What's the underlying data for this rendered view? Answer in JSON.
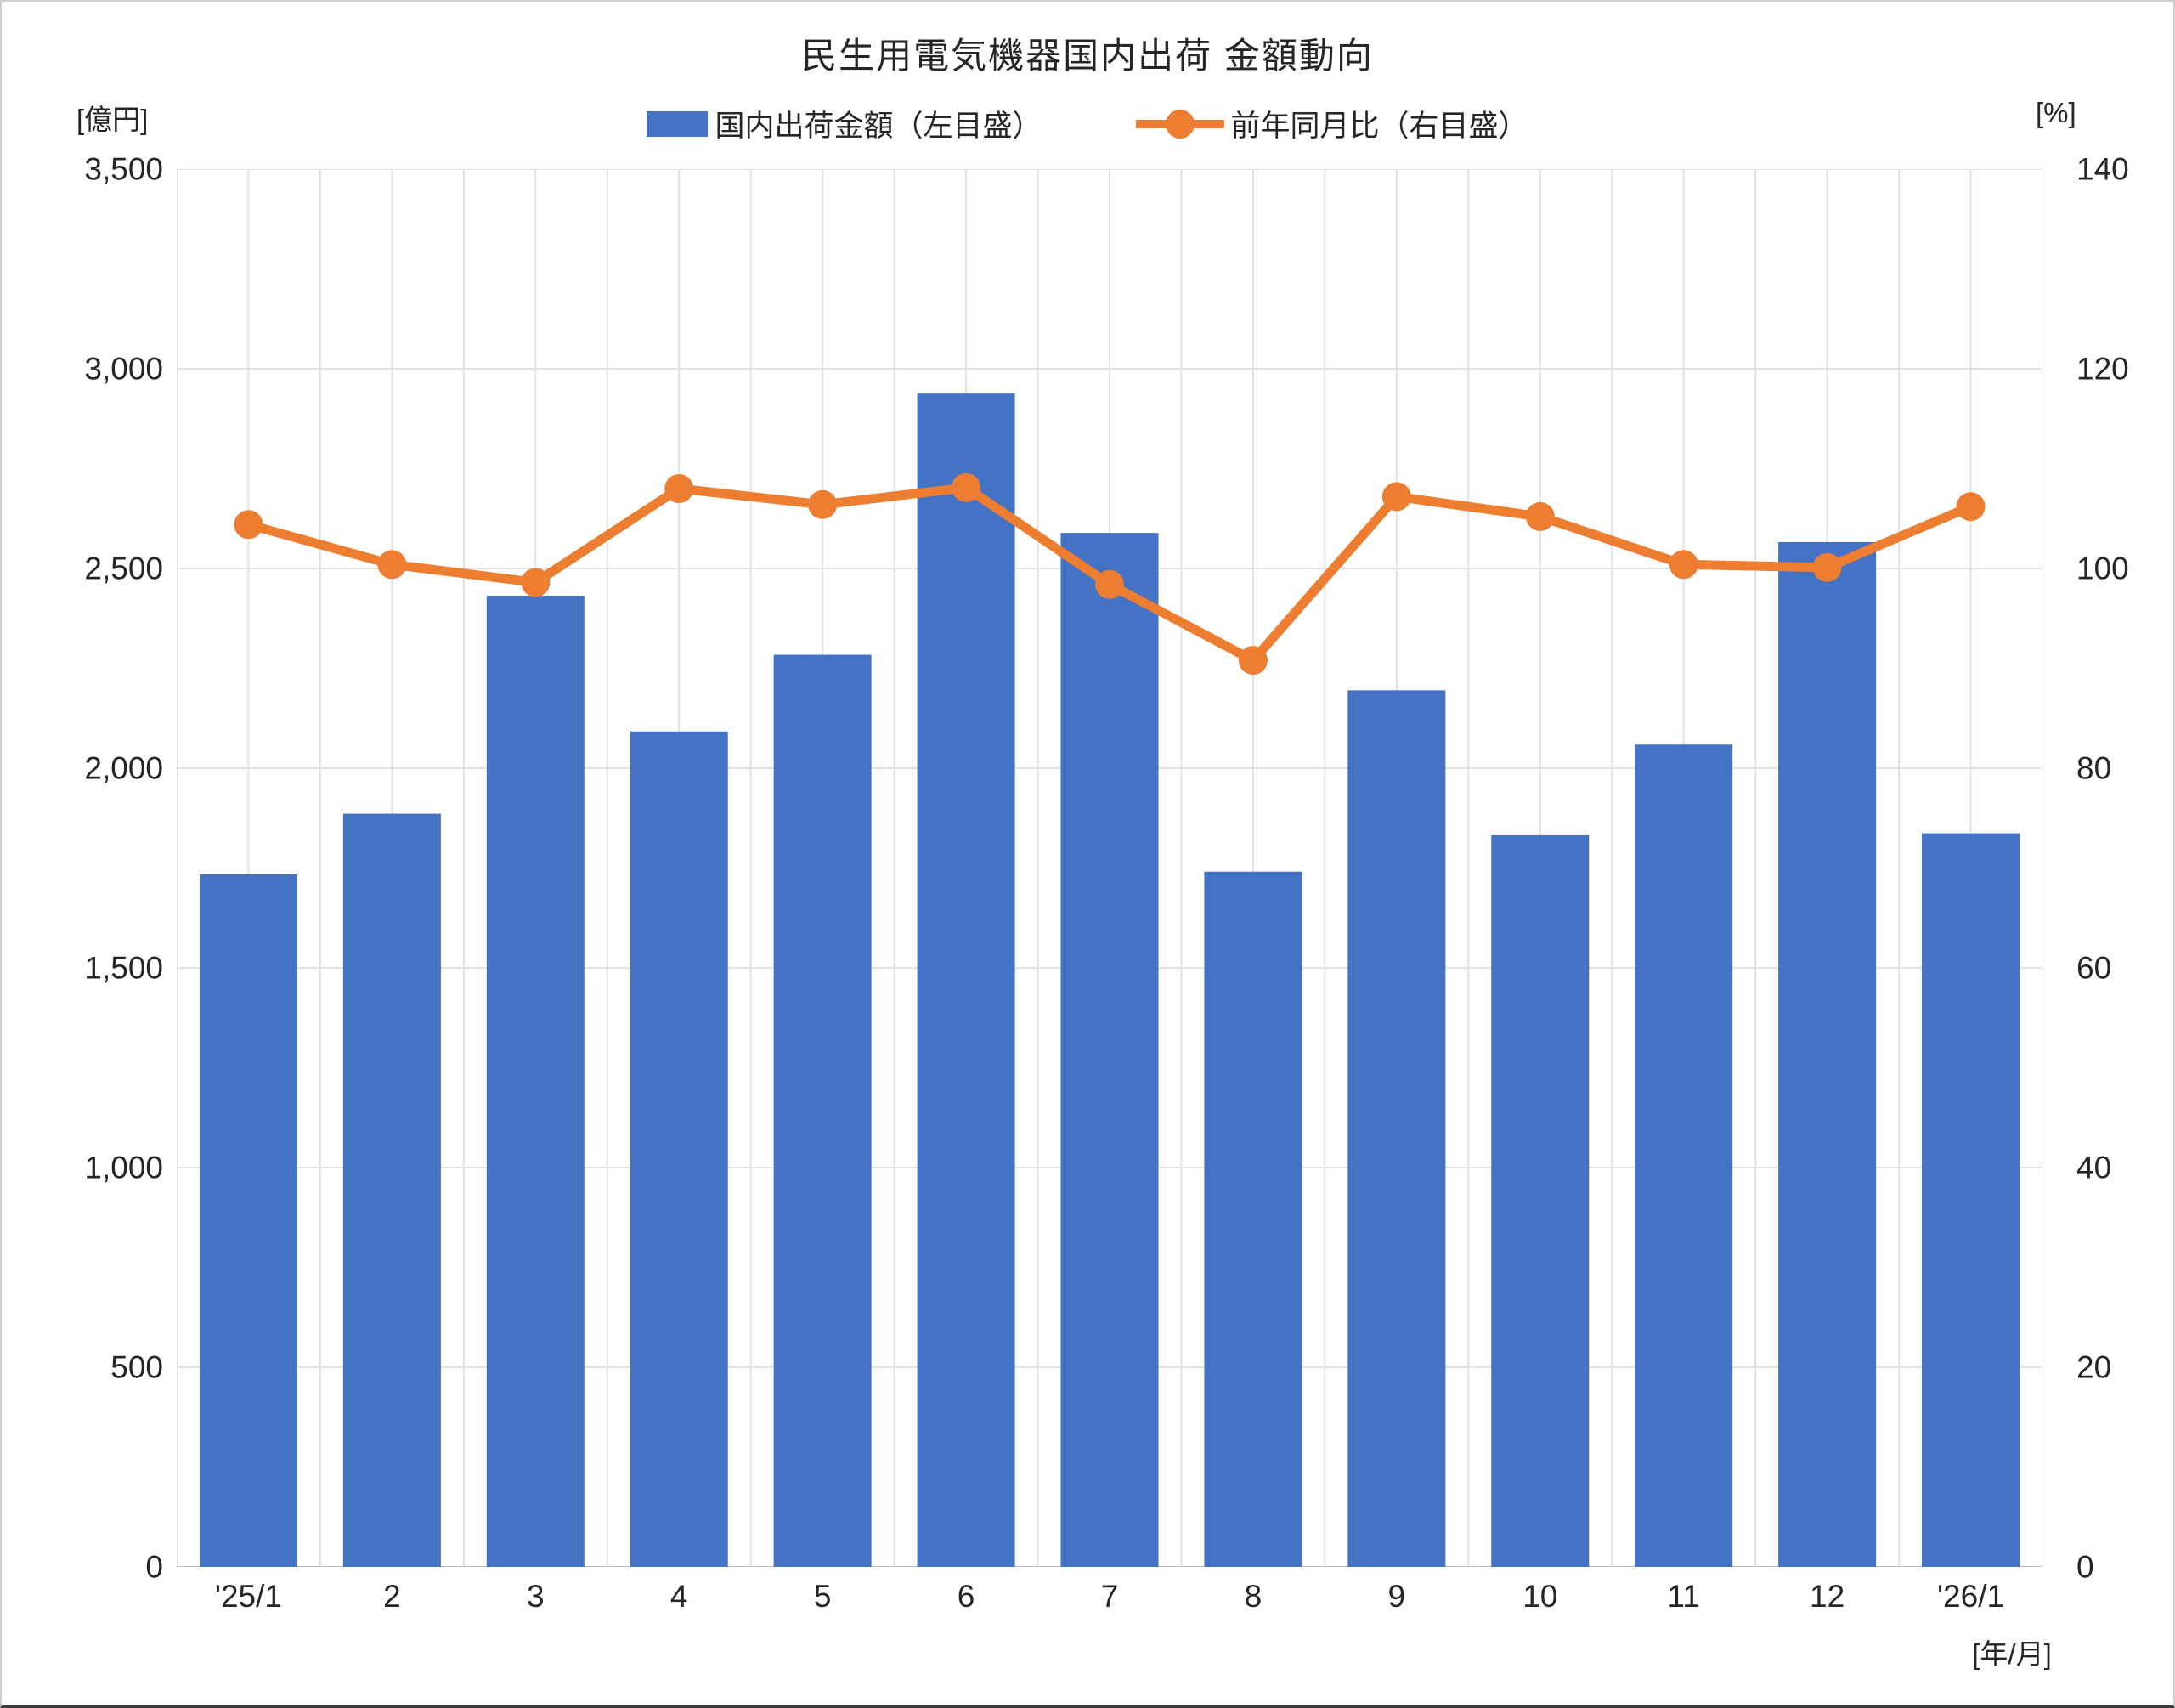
{
  "title": "民生用電気機器国内出荷 金額動向",
  "legend": {
    "bar_label": "国内出荷金額（左目盛）",
    "line_label": "前年同月比（右目盛）"
  },
  "left_axis": {
    "unit": "[億円]",
    "ticks": [
      "3,500",
      "3,000",
      "2,500",
      "2,000",
      "1,500",
      "1,000",
      "500",
      "0"
    ],
    "max": 3500,
    "min": 0,
    "step": 500
  },
  "right_axis": {
    "unit": "[%]",
    "ticks": [
      "140",
      "120",
      "100",
      "80",
      "60",
      "40",
      "20",
      "0"
    ],
    "max": 140,
    "min": 0,
    "step": 20
  },
  "x_axis": {
    "unit": "[年/月]",
    "labels": [
      "'25/1",
      "2",
      "3",
      "4",
      "5",
      "6",
      "7",
      "8",
      "9",
      "10",
      "11",
      "12",
      "'26/1"
    ]
  },
  "colors": {
    "bar": "#4472C4",
    "line": "#ED7D31",
    "gridline": "#E2E2E2",
    "axis_line": "#BFBFBF"
  },
  "chart_data": {
    "type": "bar+line",
    "title": "民生用電気機器国内出荷 金額動向",
    "categories": [
      "'25/1",
      "2",
      "3",
      "4",
      "5",
      "6",
      "7",
      "8",
      "9",
      "10",
      "11",
      "12",
      "'26/1"
    ],
    "series": [
      {
        "name": "国内出荷金額（左目盛）",
        "type": "bar",
        "axis": "left",
        "unit": "億円",
        "color": "#4472C4",
        "values": [
          1734,
          1886,
          2432,
          2092,
          2284,
          2938,
          2589,
          1741,
          2195,
          1832,
          2059,
          2566,
          1837
        ]
      },
      {
        "name": "前年同月比（右目盛）",
        "type": "line",
        "axis": "right",
        "unit": "%",
        "color": "#ED7D31",
        "values": [
          104.4,
          100.4,
          98.6,
          108.0,
          106.4,
          108.1,
          98.4,
          90.8,
          107.2,
          105.2,
          100.4,
          100.1,
          106.2
        ]
      }
    ],
    "left_ylim": [
      0,
      3500
    ],
    "right_ylim": [
      0,
      140
    ],
    "grid": true,
    "legend_position": "top"
  }
}
